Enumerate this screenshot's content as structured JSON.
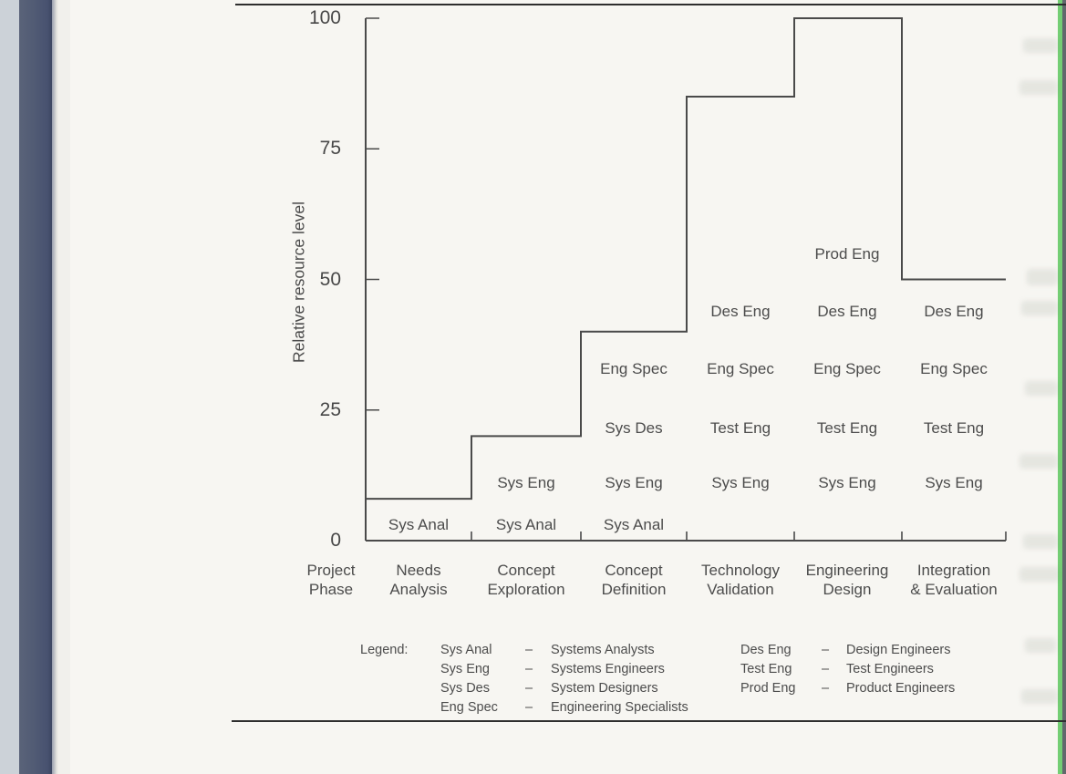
{
  "figure": {
    "kind": "scanned-book-figure",
    "caption_visible": false
  },
  "chart_data": {
    "type": "step-line",
    "ylabel": "Relative resource level",
    "ylim": [
      0,
      100
    ],
    "yticks": [
      0,
      25,
      50,
      75,
      100
    ],
    "grid": false,
    "phase_axis_title": {
      "line1": "Project",
      "line2": "Phase"
    },
    "categories": [
      {
        "line1": "Needs",
        "line2": "Analysis"
      },
      {
        "line1": "Concept",
        "line2": "Exploration"
      },
      {
        "line1": "Concept",
        "line2": "Definition"
      },
      {
        "line1": "Technology",
        "line2": "Validation"
      },
      {
        "line1": "Engineering",
        "line2": "Design"
      },
      {
        "line1": "Integration",
        "line2": "& Evaluation"
      }
    ],
    "values": [
      8,
      20,
      40,
      85,
      100,
      50
    ],
    "role_rows": [
      {
        "row": "prod-eng",
        "labels": [
          "",
          "",
          "",
          "",
          "Prod Eng",
          ""
        ]
      },
      {
        "row": "des-eng",
        "labels": [
          "",
          "",
          "",
          "Des Eng",
          "Des Eng",
          "Des Eng"
        ]
      },
      {
        "row": "eng-spec",
        "labels": [
          "",
          "",
          "Eng Spec",
          "Eng Spec",
          "Eng Spec",
          "Eng Spec"
        ]
      },
      {
        "row": "sys-des-test-eng",
        "labels": [
          "",
          "",
          "Sys Des",
          "Test Eng",
          "Test Eng",
          "Test Eng"
        ]
      },
      {
        "row": "sys-eng",
        "labels": [
          "",
          "Sys Eng",
          "Sys Eng",
          "Sys Eng",
          "Sys Eng",
          "Sys Eng"
        ]
      },
      {
        "row": "sys-anal",
        "labels": [
          "Sys Anal",
          "Sys Anal",
          "Sys Anal",
          "",
          "",
          ""
        ]
      }
    ]
  },
  "legend": {
    "title": "Legend:",
    "columns": [
      {
        "entries": [
          {
            "abbr": "Sys Anal",
            "sep": "–",
            "name": "Systems Analysts"
          },
          {
            "abbr": "Sys Eng",
            "sep": "–",
            "name": "Systems Engineers"
          },
          {
            "abbr": "Sys Des",
            "sep": "–",
            "name": "System Designers"
          },
          {
            "abbr": "Eng Spec",
            "sep": "–",
            "name": "Engineering Specialists"
          }
        ]
      },
      {
        "entries": [
          {
            "abbr": "Des Eng",
            "sep": "–",
            "name": "Design Engineers"
          },
          {
            "abbr": "Test Eng",
            "sep": "–",
            "name": "Test Engineers"
          },
          {
            "abbr": "Prod Eng",
            "sep": "–",
            "name": "Product Engineers"
          }
        ]
      }
    ]
  },
  "colors": {
    "chart_line": "#4a4a4a",
    "text": "#4c4c4c",
    "rule": "#2e2e2e",
    "paper": "#f7f6f2",
    "binding_blue": "#515b74",
    "edge_green": "#74ce74"
  }
}
